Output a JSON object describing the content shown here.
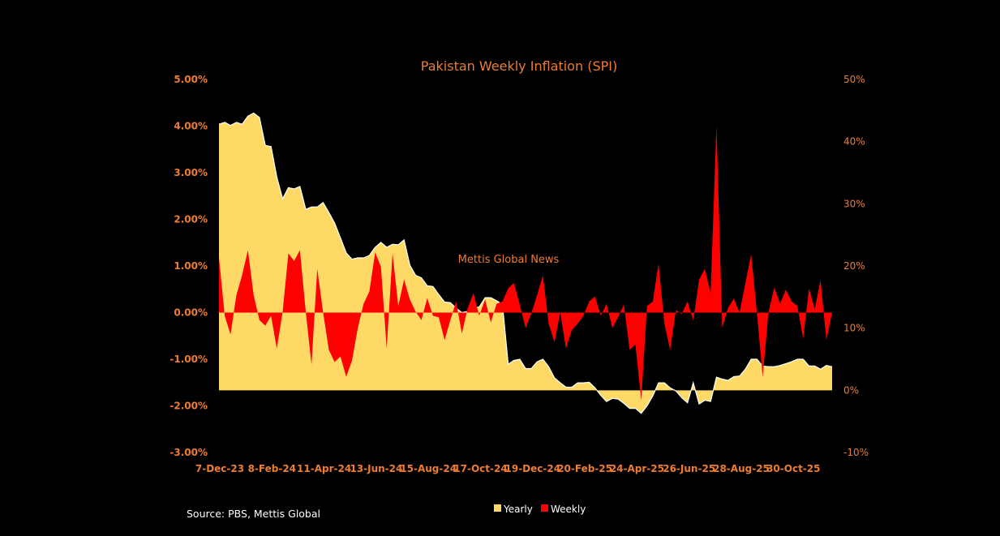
{
  "chart_data": {
    "type": "area",
    "title": "Pakistan Weekly Inflation (SPI)",
    "watermark": "Mettis Global News",
    "source": "Source: PBS, Mettis Global",
    "x_tick_labels": [
      "7-Dec-23",
      "8-Feb-24",
      "11-Apr-24",
      "13-Jun-24",
      "15-Aug-24",
      "17-Oct-24",
      "19-Dec-24",
      "20-Feb-25",
      "24-Apr-25",
      "26-Jun-25",
      "28-Aug-25",
      "30-Oct-25"
    ],
    "left_axis": {
      "ylim": [
        -3,
        5
      ],
      "ticks": [
        "5.00%",
        "4.00%",
        "3.00%",
        "2.00%",
        "1.00%",
        "0.00%",
        "-1.00%",
        "-2.00%",
        "-3.00%"
      ],
      "series": "Weekly"
    },
    "right_axis": {
      "ylim": [
        -10,
        50
      ],
      "ticks": [
        "50%",
        "40%",
        "30%",
        "20%",
        "10%",
        "0%",
        "-10%"
      ],
      "series": "Yearly"
    },
    "legend": {
      "placement": "bottom",
      "entries": [
        "Yearly",
        "Weekly"
      ]
    },
    "colors": {
      "Yearly": "#FFD966",
      "Weekly": "#FF0000",
      "text": "#ED7D31"
    },
    "series": [
      {
        "name": "Yearly",
        "axis": "right",
        "values": [
          42.8,
          43.1,
          42.6,
          43.1,
          42.8,
          44.1,
          44.6,
          43.9,
          39.4,
          39.2,
          34.3,
          30.8,
          32.6,
          32.4,
          32.8,
          29.1,
          29.5,
          29.5,
          30.2,
          28.6,
          26.9,
          24.5,
          22.1,
          21.1,
          21.3,
          21.3,
          21.7,
          23.0,
          23.8,
          23.0,
          23.5,
          23.4,
          24.2,
          20.1,
          18.5,
          18.1,
          16.8,
          16.7,
          15.4,
          14.2,
          14.1,
          13.2,
          12.5,
          12.7,
          13.3,
          13.4,
          14.9,
          14.9,
          14.4,
          13.8,
          4.2,
          4.8,
          5.0,
          3.5,
          3.5,
          4.6,
          5.0,
          3.8,
          2.0,
          1.2,
          0.5,
          0.5,
          1.2,
          1.2,
          1.3,
          0.4,
          -0.8,
          -1.8,
          -1.3,
          -1.4,
          -2.1,
          -2.9,
          -2.9,
          -3.7,
          -2.5,
          -0.9,
          1.2,
          1.2,
          0.4,
          -0.1,
          -1.2,
          -2.0,
          1.2,
          -2.2,
          -1.6,
          -1.8,
          2.1,
          1.8,
          1.6,
          2.2,
          2.3,
          3.4,
          5.0,
          5.0,
          3.9,
          3.8,
          3.8,
          4.0,
          4.3,
          4.6,
          5.0,
          5.0,
          3.9,
          3.9,
          3.4,
          4.0,
          3.8
        ]
      },
      {
        "name": "Weekly",
        "axis": "left",
        "values": [
          1.18,
          -0.07,
          -0.47,
          0.37,
          0.8,
          1.34,
          0.37,
          -0.16,
          -0.28,
          -0.07,
          -0.77,
          0.02,
          1.27,
          1.11,
          1.34,
          0.02,
          -1.12,
          0.94,
          0,
          -0.8,
          -1.06,
          -0.94,
          -1.38,
          -1.03,
          -0.33,
          0.19,
          0.45,
          1.29,
          0.98,
          -0.77,
          1.27,
          0.14,
          0.71,
          0.28,
          0.02,
          -0.16,
          0.31,
          -0.07,
          -0.1,
          -0.59,
          -0.16,
          0.24,
          -0.45,
          0.1,
          0.42,
          -0.07,
          0.28,
          -0.21,
          0.19,
          0.24,
          0.52,
          0.64,
          0.17,
          -0.33,
          -0.02,
          0.38,
          0.8,
          -0.24,
          -0.64,
          0,
          -0.77,
          -0.37,
          -0.24,
          -0.07,
          0.24,
          0.35,
          -0.07,
          0.19,
          -0.33,
          -0.1,
          0.17,
          -0.8,
          -0.68,
          -1.88,
          0.14,
          0.24,
          1.05,
          -0.24,
          -0.8,
          0.05,
          -0.03,
          0.24,
          -0.17,
          0.71,
          0.94,
          0.42,
          4.02,
          -0.33,
          0.1,
          0.3,
          0,
          0.63,
          1.25,
          0,
          -1.38,
          0,
          0.54,
          0.19,
          0.49,
          0.24,
          0.14,
          -0.56,
          0.52,
          0.07,
          0.7,
          -0.59,
          0
        ]
      }
    ]
  }
}
